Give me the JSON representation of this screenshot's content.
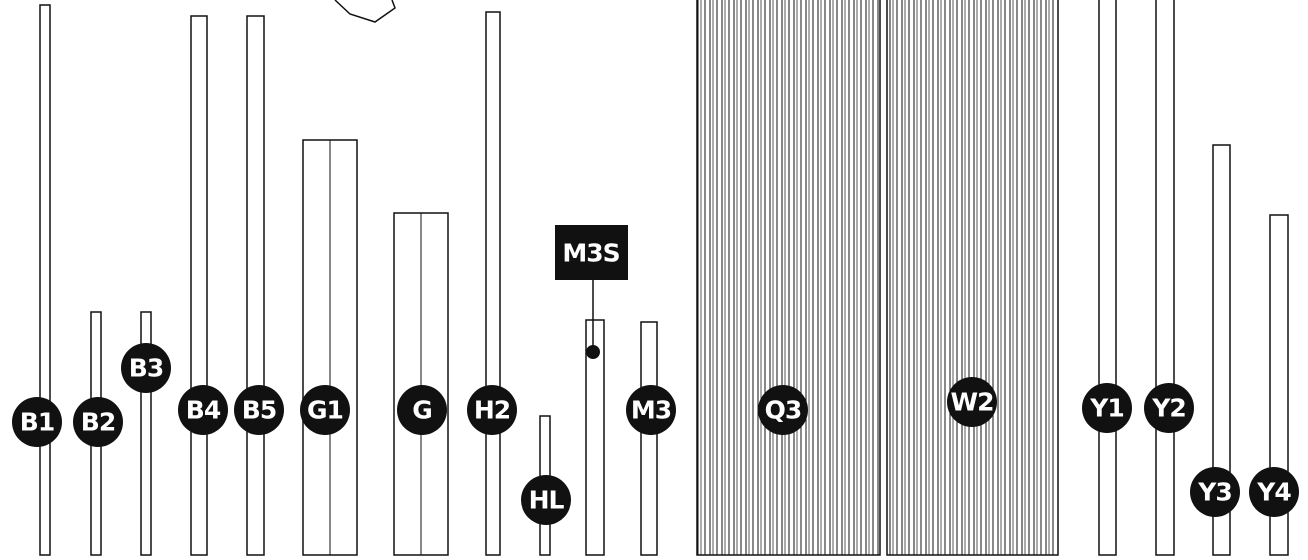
{
  "parts": [
    "B1",
    "B2",
    "B3",
    "B4",
    "B5",
    "G1",
    "G",
    "H2",
    "HL",
    "M3",
    "Q3",
    "W2",
    "Y1",
    "Y2",
    "Y3",
    "Y4"
  ],
  "callout": "M3S"
}
